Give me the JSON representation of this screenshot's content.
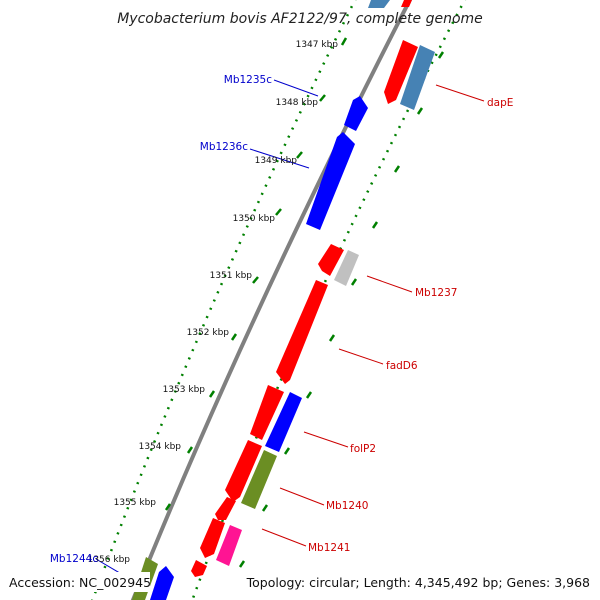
{
  "title": "Mycobacterium bovis AF2122/97, complete genome",
  "footer": {
    "accession": "Accession: NC_002945",
    "summary": "Topology: circular; Length: 4,345,492 bp; Genes: 3,968"
  },
  "ticks": [
    "1347 kbp",
    "1348 kbp",
    "1349 kbp",
    "1350 kbp",
    "1351 kbp",
    "1352 kbp",
    "1353 kbp",
    "1354 kbp",
    "1355 kbp",
    "1356 kbp"
  ],
  "gene_labels": [
    {
      "text": "Mb1235c",
      "color": "#0000cc"
    },
    {
      "text": "Mb1236c",
      "color": "#0000cc"
    },
    {
      "text": "Mb1244c",
      "color": "#0000cc"
    },
    {
      "text": "dapE",
      "color": "#cc0000"
    },
    {
      "text": "Mb1237",
      "color": "#cc0000"
    },
    {
      "text": "fadD6",
      "color": "#cc0000"
    },
    {
      "text": "folP2",
      "color": "#cc0000"
    },
    {
      "text": "Mb1240",
      "color": "#cc0000"
    },
    {
      "text": "Mb1241",
      "color": "#cc0000"
    }
  ],
  "colors": {
    "backbone": "#808080",
    "forward_strand": "#ff0000",
    "reverse_strand": "#0000ff",
    "tick_dots": "#008000",
    "steelblue_feature": "#4682b4",
    "olive_feature": "#6b8e23",
    "gray_feature": "#c0c0c0",
    "pink_feature": "#ff1493"
  }
}
